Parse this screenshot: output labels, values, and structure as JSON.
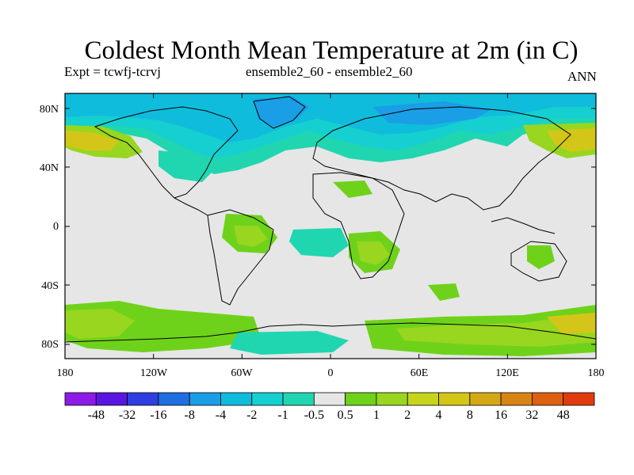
{
  "title": "Coldest Month Mean Temperature at 2m (in C)",
  "subtitle_left": "Expt = tcwfj-tcrvj",
  "subtitle_center": "ensemble2_60 - ensemble2_60",
  "subtitle_right": "ANN",
  "map": {
    "background_color": "#e6e6e6",
    "x_ticks": [
      "180",
      "120W",
      "60W",
      "0",
      "60E",
      "120E",
      "180"
    ],
    "y_ticks": [
      "80N",
      "40N",
      "0",
      "40S",
      "80S"
    ]
  },
  "colorbar": {
    "colors": [
      "#8d1ae6",
      "#5a16e0",
      "#2f3ee0",
      "#1f6fe0",
      "#1a9ee6",
      "#10bcdc",
      "#16cfd0",
      "#1fd6b0",
      "#e6e6e6",
      "#6fd21a",
      "#98d620",
      "#c6d41c",
      "#d4c618",
      "#d4a814",
      "#d88414",
      "#dc6010",
      "#e03c10"
    ],
    "labels": [
      "-48",
      "-32",
      "-16",
      "-8",
      "-4",
      "-2",
      "-1",
      "-0.5",
      "0.5",
      "1",
      "2",
      "4",
      "8",
      "16",
      "32",
      "48"
    ]
  }
}
